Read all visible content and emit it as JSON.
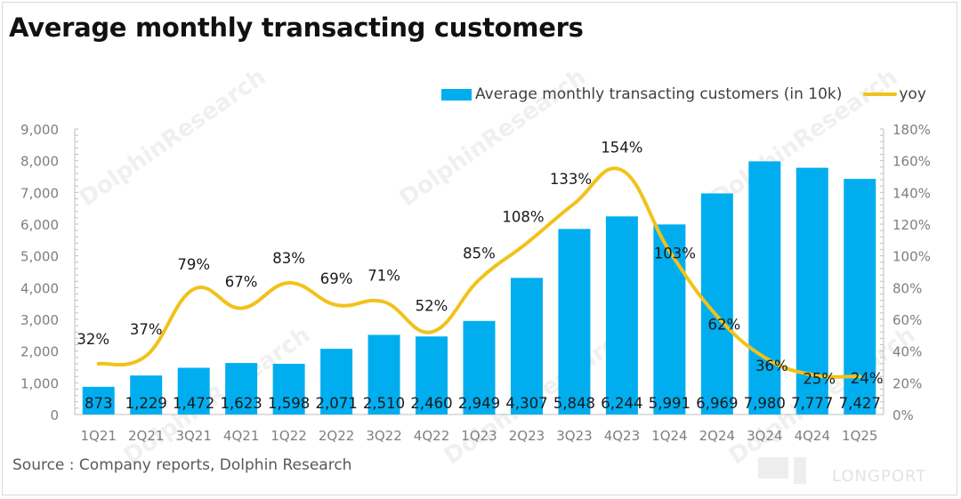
{
  "title": "Average monthly transacting customers",
  "source": "Source : Company reports, Dolphin Research",
  "brand": "LONGPORT",
  "watermark": "DolphinResearch",
  "legend": {
    "bar_label": "Average monthly transacting customers (in 10k)",
    "line_label": "yoy"
  },
  "colors": {
    "bar": "#00AEEF",
    "line": "#F2C21B",
    "axis_text": "#7F7F7F",
    "label_text": "#1A1A1A"
  },
  "chart_data": {
    "type": "bar",
    "title": "Average monthly transacting customers",
    "xlabel": "",
    "ylabel": "",
    "categories": [
      "1Q21",
      "2Q21",
      "3Q21",
      "4Q21",
      "1Q22",
      "2Q22",
      "3Q22",
      "4Q22",
      "1Q23",
      "2Q23",
      "3Q23",
      "4Q23",
      "1Q24",
      "2Q24",
      "3Q24",
      "4Q24",
      "1Q25"
    ],
    "series": [
      {
        "name": "Average monthly transacting customers (in 10k)",
        "type": "bar",
        "axis": "left",
        "values": [
          873,
          1229,
          1472,
          1623,
          1598,
          2071,
          2510,
          2460,
          2949,
          4307,
          5848,
          6244,
          5991,
          6969,
          7980,
          7777,
          7427
        ],
        "labels": [
          "873",
          "1,229",
          "1,472",
          "1,623",
          "1,598",
          "2,071",
          "2,510",
          "2,460",
          "2,949",
          "4,307",
          "5,848",
          "6,244",
          "5,991",
          "6,969",
          "7,980",
          "7,777",
          "7,427"
        ]
      },
      {
        "name": "yoy",
        "type": "line",
        "axis": "right",
        "values": [
          32,
          37,
          79,
          67,
          83,
          69,
          71,
          52,
          85,
          108,
          133,
          154,
          103,
          62,
          36,
          25,
          24
        ],
        "labels": [
          "32%",
          "37%",
          "79%",
          "67%",
          "83%",
          "69%",
          "71%",
          "52%",
          "85%",
          "108%",
          "133%",
          "154%",
          "103%",
          "62%",
          "36%",
          "25%",
          "24%"
        ]
      }
    ],
    "y_left": {
      "ylim": [
        0,
        9000
      ],
      "ticks": [
        "0",
        "1,000",
        "2,000",
        "3,000",
        "4,000",
        "5,000",
        "6,000",
        "7,000",
        "8,000",
        "9,000"
      ]
    },
    "y_right": {
      "ylim": [
        0,
        180
      ],
      "ticks": [
        "0%",
        "20%",
        "40%",
        "60%",
        "80%",
        "100%",
        "120%",
        "140%",
        "160%",
        "180%"
      ]
    },
    "legend_position": "top-right",
    "grid": false
  }
}
